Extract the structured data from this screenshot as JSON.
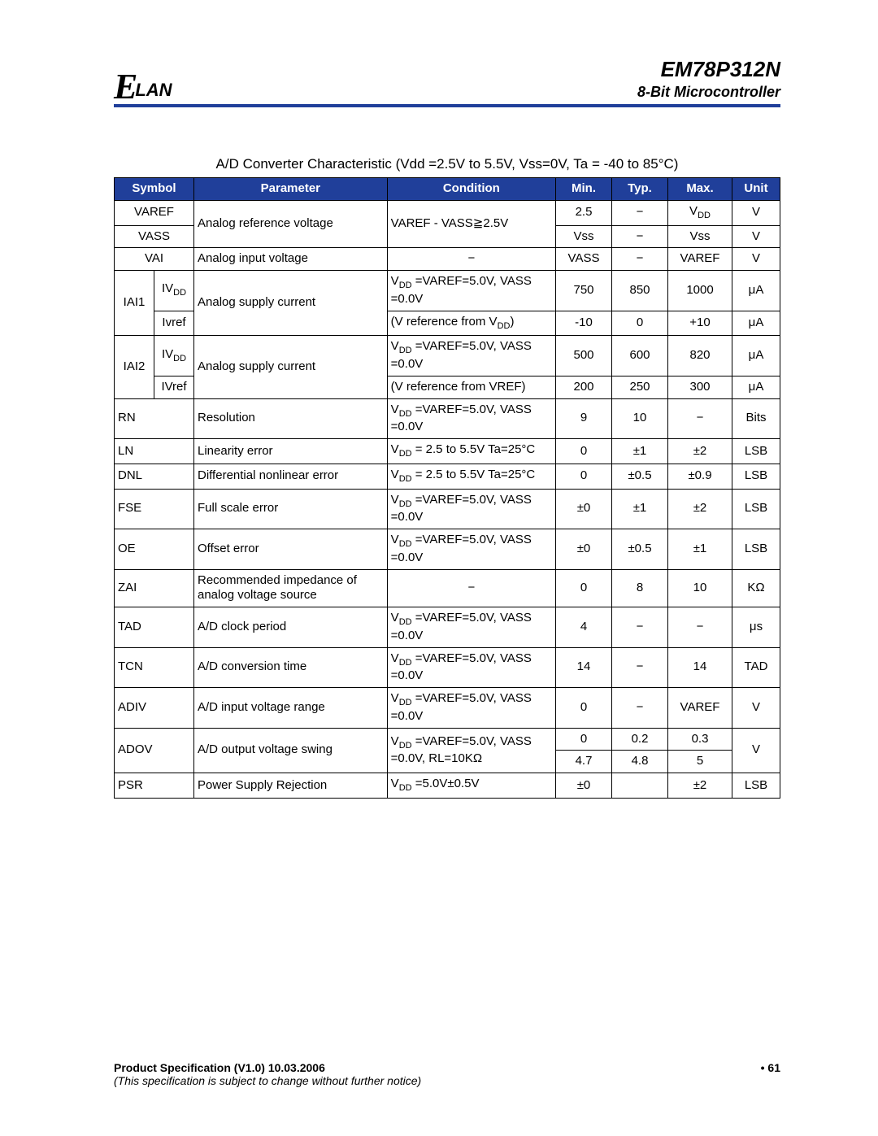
{
  "header": {
    "logo_script": "E",
    "logo_lan": "LAN",
    "title_main": "EM78P312N",
    "title_sub": "8-Bit Microcontroller",
    "hr_color": "#203f9a"
  },
  "table": {
    "caption": "A/D Converter Characteristic (Vdd =2.5V to 5.5V, Vss=0V, Ta = -40 to 85°C)",
    "header_bg": "#203f9a",
    "header_fg": "#ffffff",
    "columns": [
      "Symbol",
      "Parameter",
      "Condition",
      "Min.",
      "Typ.",
      "Max.",
      "Unit"
    ],
    "rows": {
      "r1": {
        "sym": "VAREF",
        "parameter": "Analog reference voltage",
        "cond": "VAREF - VASS≧2.5V",
        "min": "2.5",
        "typ": "−",
        "max_html": "V<span class='sub'>DD</span>",
        "unit": "V"
      },
      "r2": {
        "sym": "VASS",
        "min": "Vss",
        "typ": "−",
        "max": "Vss",
        "unit": "V"
      },
      "r3": {
        "sym": "VAI",
        "parameter": "Analog input voltage",
        "cond": "−",
        "min": "VASS",
        "typ": "−",
        "max": "VAREF",
        "unit": "V"
      },
      "r4": {
        "sym_outer": "IAI1",
        "sym_sub_html": "IV<span class='sub'>DD</span>",
        "parameter": "Analog supply current",
        "cond_line1_html": "V<span class='sub'>DD</span> =VAREF=5.0V, VASS =0.0V",
        "min": "750",
        "typ": "850",
        "max": "1000",
        "unit": "μA"
      },
      "r5": {
        "sym_sub": "Ivref",
        "cond_line2_html": "(V reference from V<span class='sub'>DD</span>)",
        "min": "-10",
        "typ": "0",
        "max": "+10",
        "unit": "μA"
      },
      "r6": {
        "sym_outer": "IAI2",
        "sym_sub_html": "IV<span class='sub'>DD</span>",
        "parameter": "Analog supply current",
        "cond_line1_html": "V<span class='sub'>DD</span> =VAREF=5.0V, VASS =0.0V",
        "min": "500",
        "typ": "600",
        "max": "820",
        "unit": "μA"
      },
      "r7": {
        "sym_sub": "IVref",
        "cond_line2": "(V reference from VREF)",
        "min": "200",
        "typ": "250",
        "max": "300",
        "unit": "μA"
      },
      "r8": {
        "sym": "RN",
        "parameter": "Resolution",
        "cond_html": "V<span class='sub'>DD</span> =VAREF=5.0V, VASS =0.0V",
        "min": "9",
        "typ": "10",
        "max": "−",
        "unit": "Bits"
      },
      "r9": {
        "sym": "LN",
        "parameter": "Linearity error",
        "cond_html": "V<span class='sub'>DD</span> = 2.5 to 5.5V Ta=25°C",
        "min": "0",
        "typ": "±1",
        "max": "±2",
        "unit": "LSB"
      },
      "r10": {
        "sym": "DNL",
        "parameter": "Differential nonlinear error",
        "cond_html": "V<span class='sub'>DD</span> = 2.5 to 5.5V Ta=25°C",
        "min": "0",
        "typ": "±0.5",
        "max": "±0.9",
        "unit": "LSB"
      },
      "r11": {
        "sym": "FSE",
        "parameter": "Full scale error",
        "cond_html": "V<span class='sub'>DD</span> =VAREF=5.0V, VASS =0.0V",
        "min": "±0",
        "typ": "±1",
        "max": "±2",
        "unit": "LSB"
      },
      "r12": {
        "sym": "OE",
        "parameter": "Offset error",
        "cond_html": "V<span class='sub'>DD</span> =VAREF=5.0V, VASS =0.0V",
        "min": "±0",
        "typ": "±0.5",
        "max": "±1",
        "unit": "LSB"
      },
      "r13": {
        "sym": "ZAI",
        "parameter": "Recommended impedance of analog voltage source",
        "cond": "−",
        "min": "0",
        "typ": "8",
        "max": "10",
        "unit": "KΩ"
      },
      "r14": {
        "sym": "TAD",
        "parameter": "A/D clock period",
        "cond_html": "V<span class='sub'>DD</span> =VAREF=5.0V, VASS =0.0V",
        "min": "4",
        "typ": "−",
        "max": "−",
        "unit": "μs"
      },
      "r15": {
        "sym": "TCN",
        "parameter": "A/D conversion time",
        "cond_html": "V<span class='sub'>DD</span> =VAREF=5.0V, VASS =0.0V",
        "min": "14",
        "typ": "−",
        "max": "14",
        "unit": "TAD"
      },
      "r16": {
        "sym": "ADIV",
        "parameter": "A/D input voltage range",
        "cond_html": "V<span class='sub'>DD</span> =VAREF=5.0V, VASS =0.0V",
        "min": "0",
        "typ": "−",
        "max": "VAREF",
        "unit": "V"
      },
      "r17": {
        "sym": "ADOV",
        "parameter": "A/D output voltage swing",
        "cond_html": "V<span class='sub'>DD</span> =VAREF=5.0V, VASS =0.0V, RL=10KΩ",
        "min": "0",
        "typ": "0.2",
        "max": "0.3",
        "unit": "V"
      },
      "r18": {
        "min": "4.7",
        "typ": "4.8",
        "max": "5"
      },
      "r19": {
        "sym": "PSR",
        "parameter": "Power Supply Rejection",
        "cond_html": "V<span class='sub'>DD</span> =5.0V±0.5V",
        "min": "±0",
        "typ": "",
        "max": "±2",
        "unit": "LSB"
      }
    }
  },
  "footer": {
    "spec_line": "Product Specification (V1.0) 10.03.2006",
    "page_no": "• 61",
    "note": "(This specification is subject to change without further notice)"
  }
}
